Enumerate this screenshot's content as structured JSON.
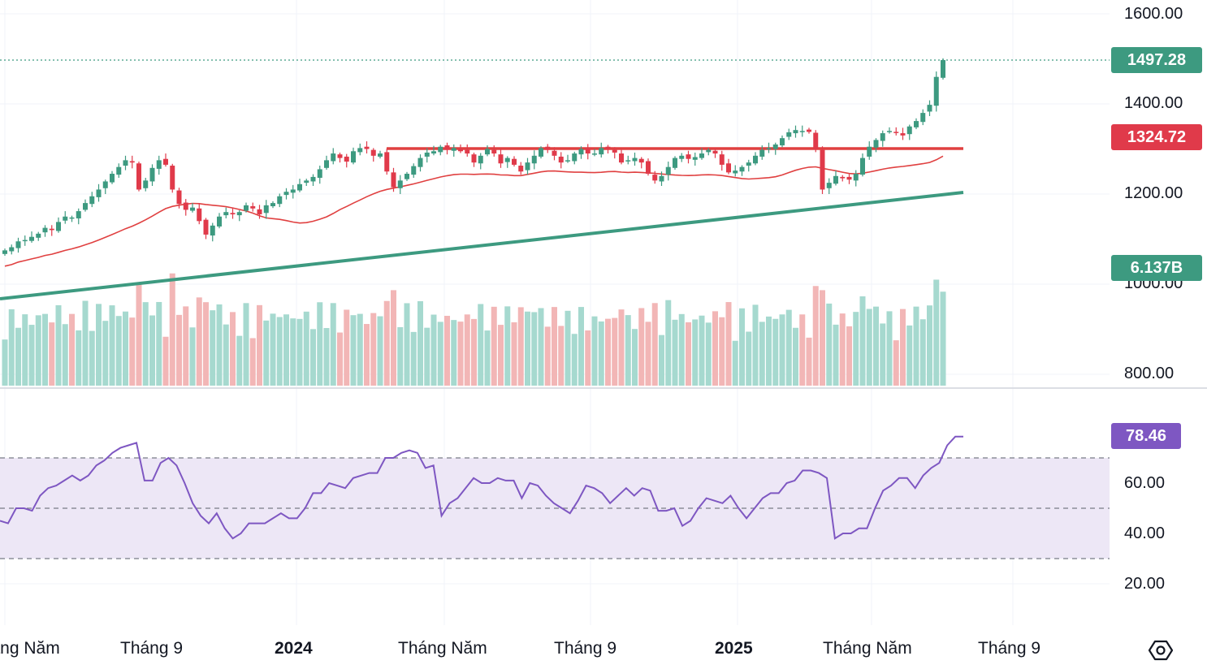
{
  "chart_data": [
    {
      "type": "candlestick",
      "panel": "price",
      "y_ticks": [
        "1600.00",
        "1400.00",
        "1200.00",
        "1000.00",
        "800.00"
      ],
      "ylim": [
        780,
        1620
      ],
      "last_price_label": "1497.28",
      "last_price": 1497.28,
      "resistance_label": "1324.72",
      "resistance_level": 1324.72,
      "volume_label": "6.137B",
      "volume_last": 6.137,
      "x_ticks": [
        "Tháng Năm",
        "Tháng 9",
        "2024",
        "Tháng Năm",
        "Tháng 9",
        "2025",
        "Tháng Năm",
        "Tháng 9"
      ],
      "x_ticks_bold": [
        false,
        false,
        true,
        false,
        false,
        true,
        false,
        false
      ],
      "closes": [
        1075,
        1082,
        1095,
        1098,
        1105,
        1112,
        1125,
        1120,
        1138,
        1150,
        1148,
        1162,
        1180,
        1195,
        1210,
        1228,
        1245,
        1260,
        1275,
        1270,
        1210,
        1230,
        1258,
        1275,
        1265,
        1210,
        1178,
        1165,
        1170,
        1140,
        1110,
        1130,
        1150,
        1160,
        1155,
        1160,
        1175,
        1168,
        1155,
        1175,
        1180,
        1195,
        1205,
        1210,
        1222,
        1230,
        1238,
        1255,
        1275,
        1290,
        1280,
        1272,
        1295,
        1302,
        1300,
        1285,
        1290,
        1250,
        1215,
        1230,
        1245,
        1262,
        1280,
        1292,
        1295,
        1305,
        1298,
        1302,
        1295,
        1290,
        1270,
        1285,
        1300,
        1290,
        1268,
        1280,
        1265,
        1250,
        1270,
        1285,
        1302,
        1298,
        1285,
        1270,
        1275,
        1290,
        1300,
        1290,
        1290,
        1302,
        1300,
        1292,
        1270,
        1275,
        1280,
        1270,
        1245,
        1230,
        1240,
        1260,
        1280,
        1285,
        1278,
        1282,
        1290,
        1298,
        1290,
        1265,
        1248,
        1252,
        1260,
        1270,
        1285,
        1298,
        1302,
        1310,
        1324,
        1337,
        1342,
        1340,
        1338,
        1300,
        1210,
        1225,
        1240,
        1235,
        1232,
        1245,
        1280,
        1305,
        1320,
        1335,
        1340,
        1337,
        1330,
        1350,
        1362,
        1380,
        1398,
        1460,
        1497.28
      ],
      "ma_line": "20-period moving average (red)",
      "trendlines": [
        "horizontal resistance (red)",
        "rising support (green)"
      ]
    },
    {
      "type": "line",
      "panel": "rsi",
      "y_ticks": [
        "60.00",
        "40.00",
        "20.00"
      ],
      "ylim": [
        10,
        85
      ],
      "bands": [
        70,
        50,
        30
      ],
      "last_value_label": "78.46",
      "values": [
        45,
        44,
        50,
        50,
        49,
        55,
        58,
        59,
        61,
        63,
        61,
        63,
        67,
        69,
        72,
        74,
        75,
        76,
        61,
        61,
        68,
        70,
        67,
        60,
        52,
        47,
        44,
        48,
        42,
        38,
        40,
        44,
        44,
        44,
        46,
        48,
        46,
        46,
        50,
        56,
        56,
        60,
        59,
        58,
        62,
        63,
        64,
        64,
        70,
        70,
        72,
        73,
        72,
        66,
        67,
        47,
        52,
        54,
        58,
        62,
        60,
        60,
        62,
        61,
        61,
        54,
        60,
        59,
        55,
        52,
        50,
        48,
        53,
        59,
        58,
        56,
        52,
        55,
        58,
        55,
        58,
        57,
        49,
        49,
        50,
        43,
        45,
        50,
        54,
        53,
        52,
        55,
        50,
        46,
        50,
        54,
        56,
        56,
        60,
        61,
        65,
        65,
        64,
        62,
        38,
        40,
        40,
        42,
        42,
        50,
        57,
        59,
        62,
        62,
        58,
        63,
        66,
        68,
        75,
        78.46,
        78.46
      ],
      "line_color": "#7e57c2"
    }
  ],
  "colors": {
    "up": "#26a69a",
    "up_strong": "#3d9a80",
    "down": "#ef5350",
    "down_candle": "#e03a4a",
    "ma": "#e04040",
    "support": "#3d9a80",
    "resistance": "#e04040",
    "rsi": "#7e57c2",
    "rsi_band": "#ede7f6",
    "price_tag": "#3d9a80",
    "resistance_tag": "#e03a4a",
    "rsi_tag": "#7e57c2"
  },
  "icons": {
    "settings": "settings-icon"
  }
}
